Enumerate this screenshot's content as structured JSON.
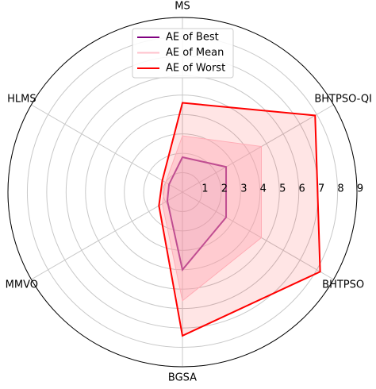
{
  "chart_data": {
    "type": "radar",
    "categories": [
      "MS",
      "BHTPSO-QI",
      "BHTPSO",
      "BGSA",
      "MMVO",
      "HLMS"
    ],
    "series": [
      {
        "name": "AE of Best",
        "color": "#800080",
        "values": [
          1.8,
          2.6,
          2.6,
          4.0,
          0.9,
          0.8
        ]
      },
      {
        "name": "AE of Mean",
        "color": "#ffc0cb",
        "values": [
          2.9,
          4.7,
          4.7,
          5.6,
          1.2,
          1.0
        ]
      },
      {
        "name": "AE of Worst",
        "color": "#ff0000",
        "values": [
          4.6,
          7.9,
          8.2,
          7.4,
          1.4,
          1.2
        ]
      }
    ],
    "ylim": [
      0,
      9
    ],
    "yticks": [
      1,
      2,
      3,
      4,
      5,
      6,
      7,
      8,
      9
    ],
    "grid": true,
    "legend": "upper center"
  }
}
